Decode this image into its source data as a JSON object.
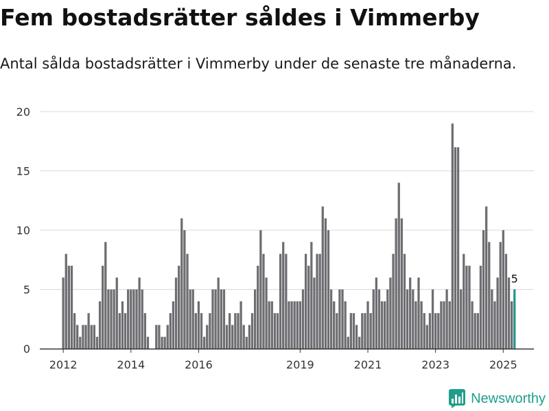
{
  "title": "Fem bostadsrätter såldes i Vimmerby",
  "subtitle": "Antal sålda bostadsrätter i Vimmerby under de senaste tre månaderna.",
  "brand": {
    "name": "Newsworthy",
    "icon": "newsworthy-logo-icon",
    "color": "#1f9e8b"
  },
  "chart_data": {
    "type": "bar",
    "title": "",
    "xlabel": "",
    "ylabel": "",
    "ylim": [
      0,
      20
    ],
    "yticks": [
      0,
      5,
      10,
      15,
      20
    ],
    "xtick_labels": [
      "2012",
      "2014",
      "2016",
      "2019",
      "2021",
      "2023",
      "2025"
    ],
    "grid": true,
    "bar_color": "#6e6d72",
    "highlight_color": "#27958d",
    "x_start": "2012-01",
    "x_end": "2025-05",
    "values": [
      6,
      8,
      7,
      7,
      3,
      2,
      1,
      2,
      2,
      3,
      2,
      2,
      1,
      4,
      7,
      9,
      5,
      5,
      5,
      6,
      3,
      4,
      3,
      5,
      5,
      5,
      5,
      6,
      5,
      3,
      1,
      0,
      0,
      2,
      2,
      1,
      1,
      2,
      3,
      4,
      6,
      7,
      11,
      10,
      8,
      5,
      5,
      3,
      4,
      3,
      1,
      2,
      3,
      5,
      5,
      6,
      5,
      5,
      2,
      3,
      2,
      3,
      3,
      4,
      2,
      1,
      2,
      3,
      5,
      7,
      10,
      8,
      6,
      4,
      4,
      3,
      3,
      8,
      9,
      8,
      4,
      4,
      4,
      4,
      4,
      5,
      8,
      7,
      9,
      6,
      8,
      8,
      12,
      11,
      10,
      5,
      4,
      3,
      5,
      5,
      4,
      1,
      3,
      3,
      2,
      1,
      3,
      3,
      4,
      3,
      5,
      6,
      5,
      4,
      4,
      5,
      6,
      8,
      11,
      14,
      11,
      8,
      5,
      6,
      5,
      4,
      6,
      4,
      3,
      2,
      3,
      5,
      3,
      3,
      4,
      4,
      5,
      4,
      19,
      17,
      17,
      5,
      8,
      7,
      7,
      4,
      3,
      3,
      7,
      10,
      12,
      9,
      5,
      4,
      6,
      9,
      10,
      8,
      6,
      4,
      5
    ],
    "annotation": {
      "index_from_end": 0,
      "label": "5"
    }
  }
}
